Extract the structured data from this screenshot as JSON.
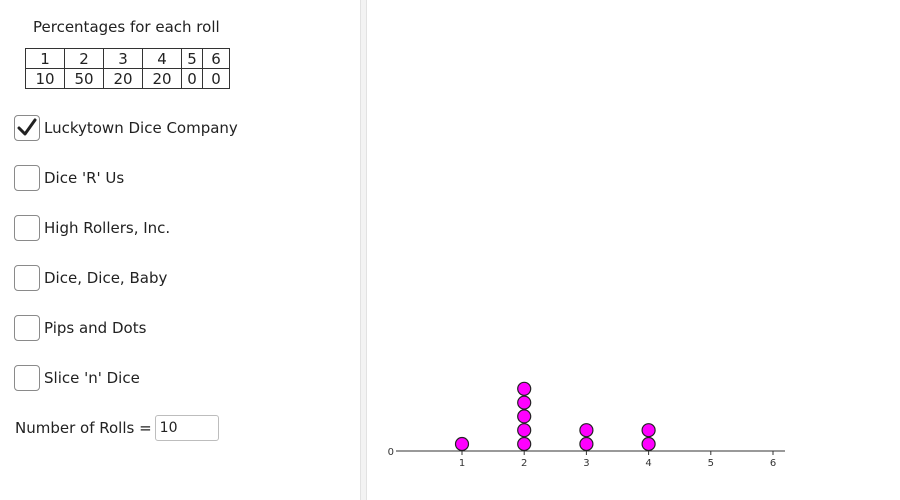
{
  "percent_table": {
    "title": "Percentages for each roll",
    "faces": [
      "1",
      "2",
      "3",
      "4",
      "5",
      "6"
    ],
    "percentages": [
      "10",
      "50",
      "20",
      "20",
      "0",
      "0"
    ]
  },
  "companies": [
    {
      "label": "Luckytown Dice Company",
      "checked": true
    },
    {
      "label": "Dice 'R' Us",
      "checked": false
    },
    {
      "label": "High Rollers, Inc.",
      "checked": false
    },
    {
      "label": "Dice, Dice, Baby",
      "checked": false
    },
    {
      "label": "Pips and Dots",
      "checked": false
    },
    {
      "label": "Slice 'n' Dice",
      "checked": false
    }
  ],
  "rolls": {
    "label": "Number of Rolls =",
    "value": "10"
  },
  "colors": {
    "dot_fill": "#ff00ff",
    "dot_stroke": "#222222",
    "axis": "#333333"
  },
  "chart_data": {
    "type": "scatter",
    "title": "",
    "xlabel": "",
    "ylabel": "",
    "x_ticks": [
      "1",
      "2",
      "3",
      "4",
      "5",
      "6"
    ],
    "y_ticks": [
      "0"
    ],
    "xlim": [
      0,
      6.2
    ],
    "x": [
      1,
      2,
      3,
      4,
      5,
      6
    ],
    "counts": [
      1,
      5,
      2,
      2,
      0,
      0
    ],
    "grid": false
  }
}
